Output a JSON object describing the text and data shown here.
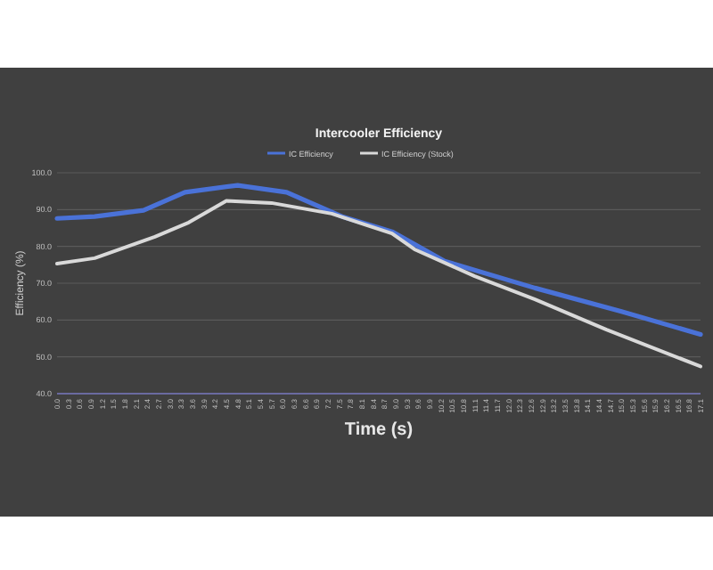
{
  "chart_data": {
    "type": "line",
    "title": "Intercooler Efficiency",
    "xlabel": "Time (s)",
    "ylabel": "Efficiency (%)",
    "series": [
      {
        "name": "IC Efficiency",
        "color": "#4a72d8",
        "x": [
          0,
          1.0,
          2.3,
          3.4,
          4.8,
          6.1,
          7.6,
          8.9,
          10.3,
          12.7,
          15.0,
          17.1
        ],
        "values": [
          87.6,
          88.1,
          89.8,
          94.7,
          96.6,
          94.7,
          88.0,
          84.0,
          76.0,
          68.7,
          62.3,
          56.1
        ]
      },
      {
        "name": "IC Efficiency (Stock)",
        "color": "#d9d9d9",
        "x": [
          0,
          1.0,
          2.6,
          3.5,
          4.5,
          5.7,
          7.3,
          8.9,
          9.5,
          11.1,
          12.7,
          14.6,
          17.1
        ],
        "values": [
          75.3,
          76.8,
          82.6,
          86.5,
          92.4,
          91.8,
          88.9,
          83.5,
          79.2,
          71.9,
          65.6,
          57.4,
          47.4
        ]
      }
    ],
    "xlim": [
      0,
      17.1
    ],
    "xticks": [
      {
        "value": 0,
        "label": "0.0"
      },
      {
        "value": 0.3,
        "label": "0.3"
      },
      {
        "value": 0.6,
        "label": "0.6"
      },
      {
        "value": 0.9,
        "label": "0.9"
      },
      {
        "value": 1.2,
        "label": "1.2"
      },
      {
        "value": 1.5,
        "label": "1.5"
      },
      {
        "value": 1.8,
        "label": "1.8"
      },
      {
        "value": 2.1,
        "label": "2.1"
      },
      {
        "value": 2.4,
        "label": "2.4"
      },
      {
        "value": 2.7,
        "label": "2.7"
      },
      {
        "value": 3.0,
        "label": "3.0"
      },
      {
        "value": 3.3,
        "label": "3.3"
      },
      {
        "value": 3.6,
        "label": "3.6"
      },
      {
        "value": 3.9,
        "label": "3.9"
      },
      {
        "value": 4.2,
        "label": "4.2"
      },
      {
        "value": 4.5,
        "label": "4.5"
      },
      {
        "value": 4.8,
        "label": "4.8"
      },
      {
        "value": 5.1,
        "label": "5.1"
      },
      {
        "value": 5.4,
        "label": "5.4"
      },
      {
        "value": 5.7,
        "label": "5.7"
      },
      {
        "value": 6.0,
        "label": "6.0"
      },
      {
        "value": 6.3,
        "label": "6.3"
      },
      {
        "value": 6.6,
        "label": "6.6"
      },
      {
        "value": 6.9,
        "label": "6.9"
      },
      {
        "value": 7.2,
        "label": "7.2"
      },
      {
        "value": 7.5,
        "label": "7.5"
      },
      {
        "value": 7.8,
        "label": "7.8"
      },
      {
        "value": 8.1,
        "label": "8.1"
      },
      {
        "value": 8.4,
        "label": "8.4"
      },
      {
        "value": 8.7,
        "label": "8.7"
      },
      {
        "value": 9.0,
        "label": "9.0"
      },
      {
        "value": 9.3,
        "label": "9.3"
      },
      {
        "value": 9.6,
        "label": "9.6"
      },
      {
        "value": 9.9,
        "label": "9.9"
      },
      {
        "value": 10.2,
        "label": "10.2"
      },
      {
        "value": 10.5,
        "label": "10.5"
      },
      {
        "value": 10.8,
        "label": "10.8"
      },
      {
        "value": 11.1,
        "label": "11.1"
      },
      {
        "value": 11.4,
        "label": "11.4"
      },
      {
        "value": 11.7,
        "label": "11.7"
      },
      {
        "value": 12.0,
        "label": "12.0"
      },
      {
        "value": 12.3,
        "label": "12.3"
      },
      {
        "value": 12.6,
        "label": "12.6"
      },
      {
        "value": 12.9,
        "label": "12.9"
      },
      {
        "value": 13.2,
        "label": "13.2"
      },
      {
        "value": 13.5,
        "label": "13.5"
      },
      {
        "value": 13.8,
        "label": "13.8"
      },
      {
        "value": 14.1,
        "label": "14.1"
      },
      {
        "value": 14.4,
        "label": "14.4"
      },
      {
        "value": 14.7,
        "label": "14.7"
      },
      {
        "value": 15.0,
        "label": "15.0"
      },
      {
        "value": 15.3,
        "label": "15.3"
      },
      {
        "value": 15.6,
        "label": "15.6"
      },
      {
        "value": 15.9,
        "label": "15.9"
      },
      {
        "value": 16.2,
        "label": "16.2"
      },
      {
        "value": 16.5,
        "label": "16.5"
      },
      {
        "value": 16.8,
        "label": "16.8"
      },
      {
        "value": 17.1,
        "label": "17.1"
      }
    ],
    "ylim": [
      40,
      100
    ],
    "yticks": [
      {
        "value": 40,
        "label": "40.0"
      },
      {
        "value": 50,
        "label": "50.0"
      },
      {
        "value": 60,
        "label": "60.0"
      },
      {
        "value": 70,
        "label": "70.0"
      },
      {
        "value": 80,
        "label": "80.0"
      },
      {
        "value": 90,
        "label": "90.0"
      },
      {
        "value": 100,
        "label": "100.0"
      }
    ],
    "grid": "y",
    "legend": "top",
    "marker": "none",
    "line_style": "solid"
  }
}
